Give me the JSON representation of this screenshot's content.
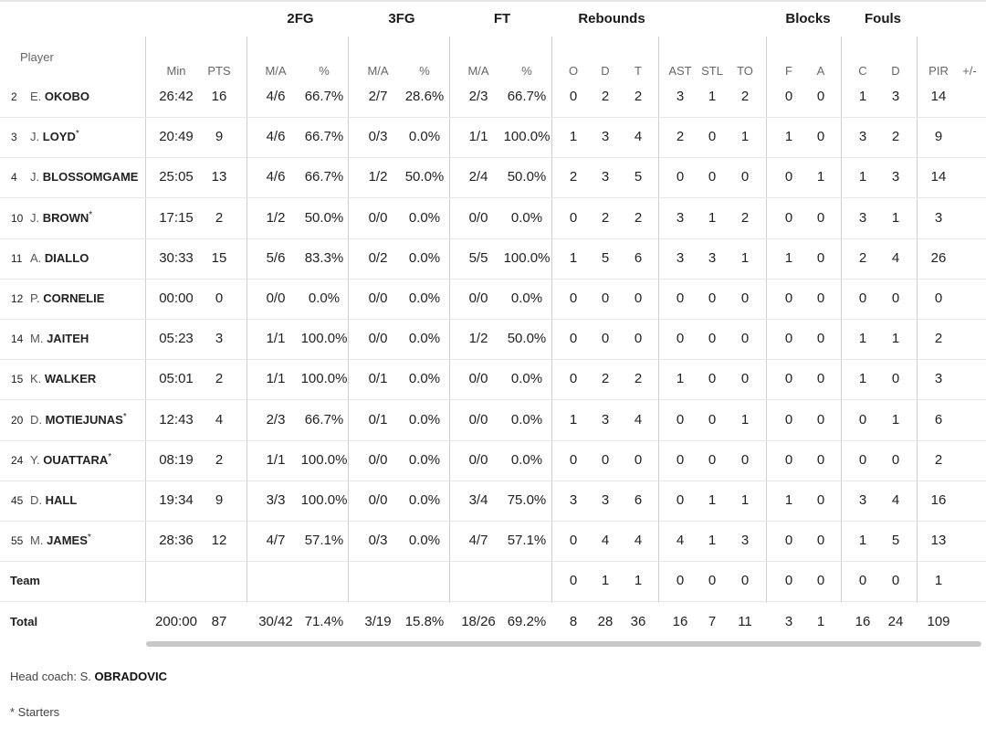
{
  "groups": {
    "fg2": "2FG",
    "fg3": "3FG",
    "ft": "FT",
    "reb": "Rebounds",
    "blk": "Blocks",
    "fouls": "Fouls"
  },
  "headers": {
    "player": "Player",
    "min": "Min",
    "pts": "PTS",
    "fg2_ma": "M/A",
    "fg2_pct": "%",
    "fg3_ma": "M/A",
    "fg3_pct": "%",
    "ft_ma": "M/A",
    "ft_pct": "%",
    "o": "O",
    "d": "D",
    "t": "T",
    "ast": "AST",
    "stl": "STL",
    "to": "TO",
    "bf": "F",
    "ba": "A",
    "fc": "C",
    "fd": "D",
    "pir": "PIR",
    "pm": "+/-"
  },
  "players": [
    {
      "num": "2",
      "initial": "E.",
      "surname": "OKOBO",
      "star": "",
      "min": "26:42",
      "pts": "16",
      "fg2_ma": "4/6",
      "fg2_pct": "66.7%",
      "fg3_ma": "2/7",
      "fg3_pct": "28.6%",
      "ft_ma": "2/3",
      "ft_pct": "66.7%",
      "o": "0",
      "d": "2",
      "t": "2",
      "ast": "3",
      "stl": "1",
      "to": "2",
      "bf": "0",
      "ba": "0",
      "fc": "1",
      "fd": "3",
      "pir": "14",
      "pm": ""
    },
    {
      "num": "3",
      "initial": "J.",
      "surname": "LOYD",
      "star": "*",
      "min": "20:49",
      "pts": "9",
      "fg2_ma": "4/6",
      "fg2_pct": "66.7%",
      "fg3_ma": "0/3",
      "fg3_pct": "0.0%",
      "ft_ma": "1/1",
      "ft_pct": "100.0%",
      "o": "1",
      "d": "3",
      "t": "4",
      "ast": "2",
      "stl": "0",
      "to": "1",
      "bf": "1",
      "ba": "0",
      "fc": "3",
      "fd": "2",
      "pir": "9",
      "pm": ""
    },
    {
      "num": "4",
      "initial": "J.",
      "surname": "BLOSSOMGAME",
      "star": "",
      "min": "25:05",
      "pts": "13",
      "fg2_ma": "4/6",
      "fg2_pct": "66.7%",
      "fg3_ma": "1/2",
      "fg3_pct": "50.0%",
      "ft_ma": "2/4",
      "ft_pct": "50.0%",
      "o": "2",
      "d": "3",
      "t": "5",
      "ast": "0",
      "stl": "0",
      "to": "0",
      "bf": "0",
      "ba": "1",
      "fc": "1",
      "fd": "3",
      "pir": "14",
      "pm": ""
    },
    {
      "num": "10",
      "initial": "J.",
      "surname": "BROWN",
      "star": "*",
      "min": "17:15",
      "pts": "2",
      "fg2_ma": "1/2",
      "fg2_pct": "50.0%",
      "fg3_ma": "0/0",
      "fg3_pct": "0.0%",
      "ft_ma": "0/0",
      "ft_pct": "0.0%",
      "o": "0",
      "d": "2",
      "t": "2",
      "ast": "3",
      "stl": "1",
      "to": "2",
      "bf": "0",
      "ba": "0",
      "fc": "3",
      "fd": "1",
      "pir": "3",
      "pm": ""
    },
    {
      "num": "11",
      "initial": "A.",
      "surname": "DIALLO",
      "star": "",
      "min": "30:33",
      "pts": "15",
      "fg2_ma": "5/6",
      "fg2_pct": "83.3%",
      "fg3_ma": "0/2",
      "fg3_pct": "0.0%",
      "ft_ma": "5/5",
      "ft_pct": "100.0%",
      "o": "1",
      "d": "5",
      "t": "6",
      "ast": "3",
      "stl": "3",
      "to": "1",
      "bf": "1",
      "ba": "0",
      "fc": "2",
      "fd": "4",
      "pir": "26",
      "pm": ""
    },
    {
      "num": "12",
      "initial": "P.",
      "surname": "CORNELIE",
      "star": "",
      "min": "00:00",
      "pts": "0",
      "fg2_ma": "0/0",
      "fg2_pct": "0.0%",
      "fg3_ma": "0/0",
      "fg3_pct": "0.0%",
      "ft_ma": "0/0",
      "ft_pct": "0.0%",
      "o": "0",
      "d": "0",
      "t": "0",
      "ast": "0",
      "stl": "0",
      "to": "0",
      "bf": "0",
      "ba": "0",
      "fc": "0",
      "fd": "0",
      "pir": "0",
      "pm": ""
    },
    {
      "num": "14",
      "initial": "M.",
      "surname": "JAITEH",
      "star": "",
      "min": "05:23",
      "pts": "3",
      "fg2_ma": "1/1",
      "fg2_pct": "100.0%",
      "fg3_ma": "0/0",
      "fg3_pct": "0.0%",
      "ft_ma": "1/2",
      "ft_pct": "50.0%",
      "o": "0",
      "d": "0",
      "t": "0",
      "ast": "0",
      "stl": "0",
      "to": "0",
      "bf": "0",
      "ba": "0",
      "fc": "1",
      "fd": "1",
      "pir": "2",
      "pm": ""
    },
    {
      "num": "15",
      "initial": "K.",
      "surname": "WALKER",
      "star": "",
      "min": "05:01",
      "pts": "2",
      "fg2_ma": "1/1",
      "fg2_pct": "100.0%",
      "fg3_ma": "0/1",
      "fg3_pct": "0.0%",
      "ft_ma": "0/0",
      "ft_pct": "0.0%",
      "o": "0",
      "d": "2",
      "t": "2",
      "ast": "1",
      "stl": "0",
      "to": "0",
      "bf": "0",
      "ba": "0",
      "fc": "1",
      "fd": "0",
      "pir": "3",
      "pm": ""
    },
    {
      "num": "20",
      "initial": "D.",
      "surname": "MOTIEJUNAS",
      "star": "*",
      "min": "12:43",
      "pts": "4",
      "fg2_ma": "2/3",
      "fg2_pct": "66.7%",
      "fg3_ma": "0/1",
      "fg3_pct": "0.0%",
      "ft_ma": "0/0",
      "ft_pct": "0.0%",
      "o": "1",
      "d": "3",
      "t": "4",
      "ast": "0",
      "stl": "0",
      "to": "1",
      "bf": "0",
      "ba": "0",
      "fc": "0",
      "fd": "1",
      "pir": "6",
      "pm": ""
    },
    {
      "num": "24",
      "initial": "Y.",
      "surname": "OUATTARA",
      "star": "*",
      "min": "08:19",
      "pts": "2",
      "fg2_ma": "1/1",
      "fg2_pct": "100.0%",
      "fg3_ma": "0/0",
      "fg3_pct": "0.0%",
      "ft_ma": "0/0",
      "ft_pct": "0.0%",
      "o": "0",
      "d": "0",
      "t": "0",
      "ast": "0",
      "stl": "0",
      "to": "0",
      "bf": "0",
      "ba": "0",
      "fc": "0",
      "fd": "0",
      "pir": "2",
      "pm": ""
    },
    {
      "num": "45",
      "initial": "D.",
      "surname": "HALL",
      "star": "",
      "min": "19:34",
      "pts": "9",
      "fg2_ma": "3/3",
      "fg2_pct": "100.0%",
      "fg3_ma": "0/0",
      "fg3_pct": "0.0%",
      "ft_ma": "3/4",
      "ft_pct": "75.0%",
      "o": "3",
      "d": "3",
      "t": "6",
      "ast": "0",
      "stl": "1",
      "to": "1",
      "bf": "1",
      "ba": "0",
      "fc": "3",
      "fd": "4",
      "pir": "16",
      "pm": ""
    },
    {
      "num": "55",
      "initial": "M.",
      "surname": "JAMES",
      "star": "*",
      "min": "28:36",
      "pts": "12",
      "fg2_ma": "4/7",
      "fg2_pct": "57.1%",
      "fg3_ma": "0/3",
      "fg3_pct": "0.0%",
      "ft_ma": "4/7",
      "ft_pct": "57.1%",
      "o": "0",
      "d": "4",
      "t": "4",
      "ast": "4",
      "stl": "1",
      "to": "3",
      "bf": "0",
      "ba": "0",
      "fc": "1",
      "fd": "5",
      "pir": "13",
      "pm": ""
    }
  ],
  "team": {
    "label": "Team",
    "min": "",
    "pts": "",
    "fg2_ma": "",
    "fg2_pct": "",
    "fg3_ma": "",
    "fg3_pct": "",
    "ft_ma": "",
    "ft_pct": "",
    "o": "0",
    "d": "1",
    "t": "1",
    "ast": "0",
    "stl": "0",
    "to": "0",
    "bf": "0",
    "ba": "0",
    "fc": "0",
    "fd": "0",
    "pir": "1",
    "pm": ""
  },
  "total": {
    "label": "Total",
    "min": "200:00",
    "pts": "87",
    "fg2_ma": "30/42",
    "fg2_pct": "71.4%",
    "fg3_ma": "3/19",
    "fg3_pct": "15.8%",
    "ft_ma": "18/26",
    "ft_pct": "69.2%",
    "o": "8",
    "d": "28",
    "t": "36",
    "ast": "16",
    "stl": "7",
    "to": "11",
    "bf": "3",
    "ba": "1",
    "fc": "16",
    "fd": "24",
    "pir": "109",
    "pm": ""
  },
  "footer": {
    "coach_prefix": "Head coach: S.",
    "coach_name": "OBRADOVIC",
    "starters_note": "* Starters"
  }
}
